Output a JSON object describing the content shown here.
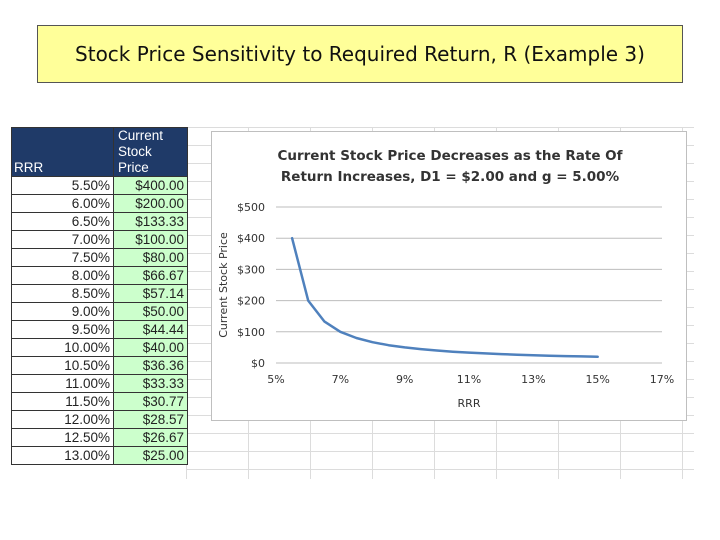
{
  "slide_title": "Stock Price Sensitivity to Required Return, R (Example 3)",
  "table": {
    "header_rate": "RRR",
    "header_price_line1": "Current",
    "header_price_line2": "Stock Price",
    "rows": [
      {
        "rate": "5.50%",
        "price": "$400.00"
      },
      {
        "rate": "6.00%",
        "price": "$200.00"
      },
      {
        "rate": "6.50%",
        "price": "$133.33"
      },
      {
        "rate": "7.00%",
        "price": "$100.00"
      },
      {
        "rate": "7.50%",
        "price": "$80.00"
      },
      {
        "rate": "8.00%",
        "price": "$66.67"
      },
      {
        "rate": "8.50%",
        "price": "$57.14"
      },
      {
        "rate": "9.00%",
        "price": "$50.00"
      },
      {
        "rate": "9.50%",
        "price": "$44.44"
      },
      {
        "rate": "10.00%",
        "price": "$40.00"
      },
      {
        "rate": "10.50%",
        "price": "$36.36"
      },
      {
        "rate": "11.00%",
        "price": "$33.33"
      },
      {
        "rate": "11.50%",
        "price": "$30.77"
      },
      {
        "rate": "12.00%",
        "price": "$28.57"
      },
      {
        "rate": "12.50%",
        "price": "$26.67"
      },
      {
        "rate": "13.00%",
        "price": "$25.00"
      }
    ]
  },
  "chart_data": {
    "type": "line",
    "title_line1": "Current Stock Price Decreases as the Rate Of",
    "title_line2": "Return Increases, D1 = $2.00 and g = 5.00%",
    "xlabel": "RRR",
    "ylabel": "Current Stock Price",
    "xlim": [
      5,
      17
    ],
    "ylim": [
      0,
      500
    ],
    "x_ticks": [
      "5%",
      "7%",
      "9%",
      "11%",
      "13%",
      "15%",
      "17%"
    ],
    "y_ticks": [
      "$0",
      "$100",
      "$200",
      "$300",
      "$400",
      "$500"
    ],
    "grid": true,
    "series": [
      {
        "x": [
          5.5,
          6.0,
          6.5,
          7.0,
          7.5,
          8.0,
          8.5,
          9.0,
          9.5,
          10.0,
          10.5,
          11.0,
          11.5,
          12.0,
          12.5,
          13.0,
          13.5,
          14.0,
          14.5,
          15.0
        ],
        "values": [
          400.0,
          200.0,
          133.33,
          100.0,
          80.0,
          66.67,
          57.14,
          50.0,
          44.44,
          40.0,
          36.36,
          33.33,
          30.77,
          28.57,
          26.67,
          25.0,
          23.53,
          22.22,
          21.05,
          20.0
        ]
      }
    ],
    "line_color": "#4f81bd"
  }
}
